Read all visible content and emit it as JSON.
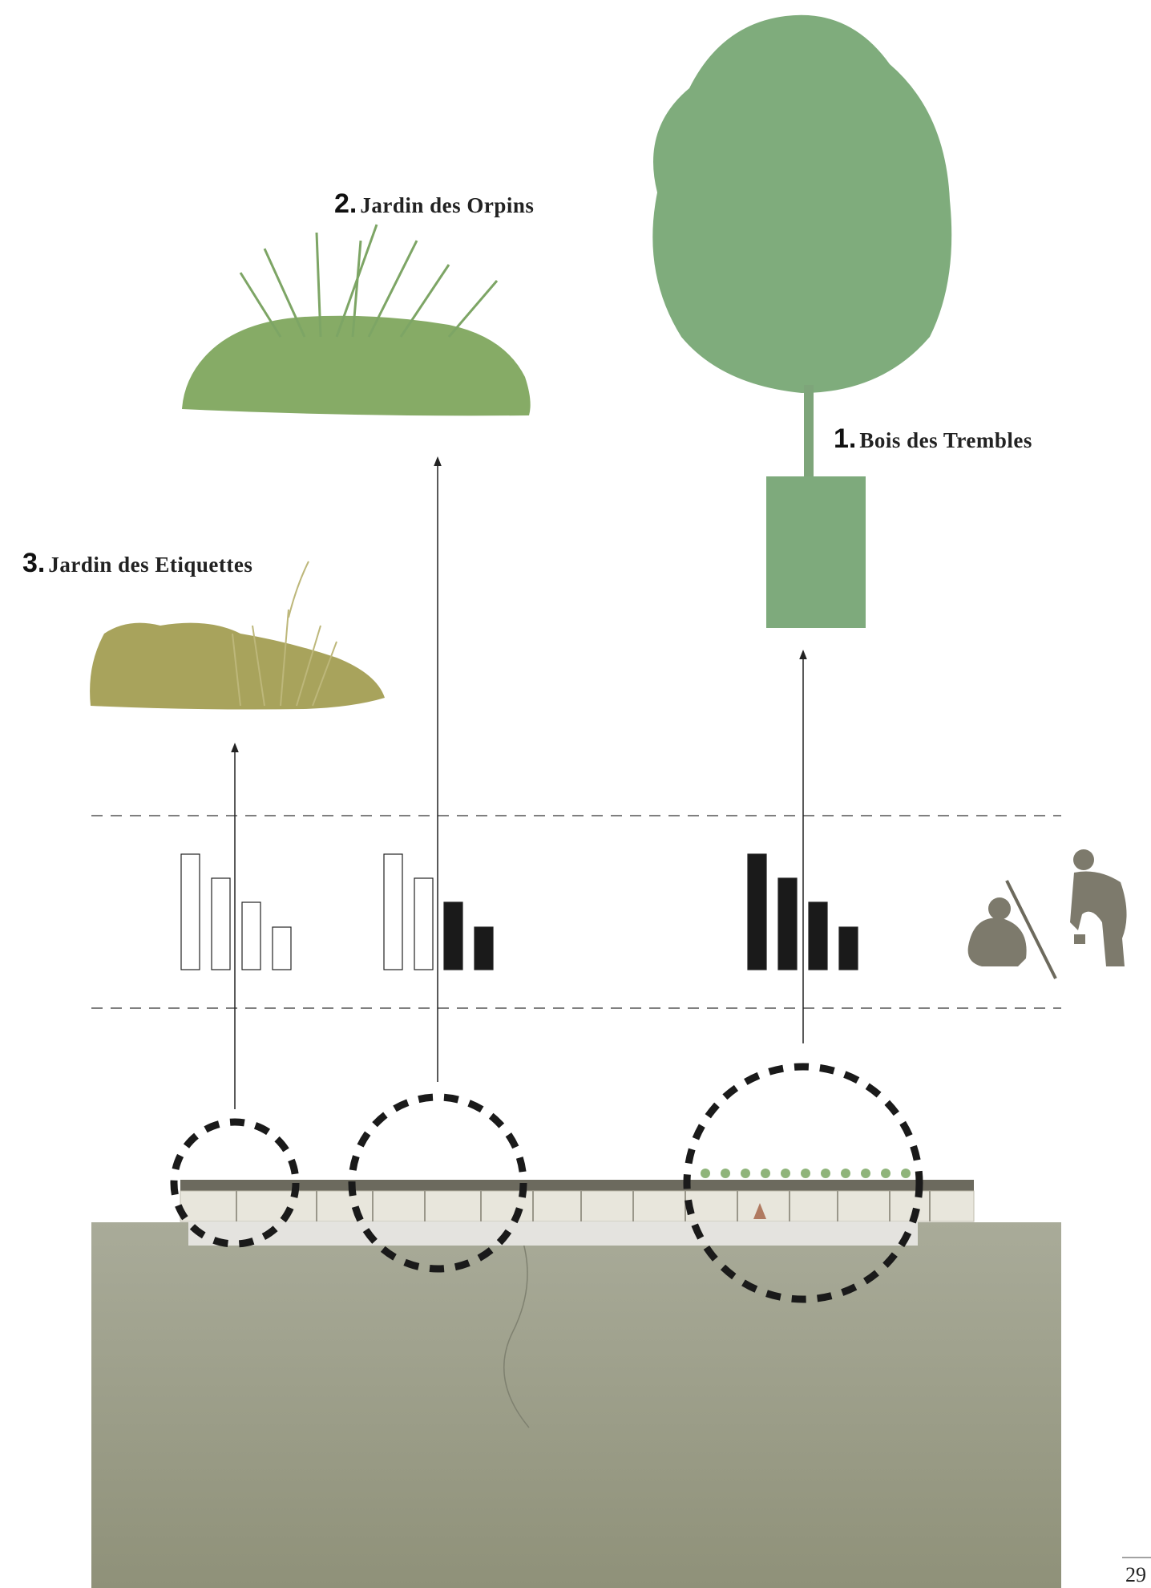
{
  "labels": [
    {
      "number": "1.",
      "name": "Bois des Trembles"
    },
    {
      "number": "2.",
      "name": "Jardin des Orpins"
    },
    {
      "number": "3.",
      "name": "Jardin des Etiquettes"
    }
  ],
  "page_number": "29"
}
